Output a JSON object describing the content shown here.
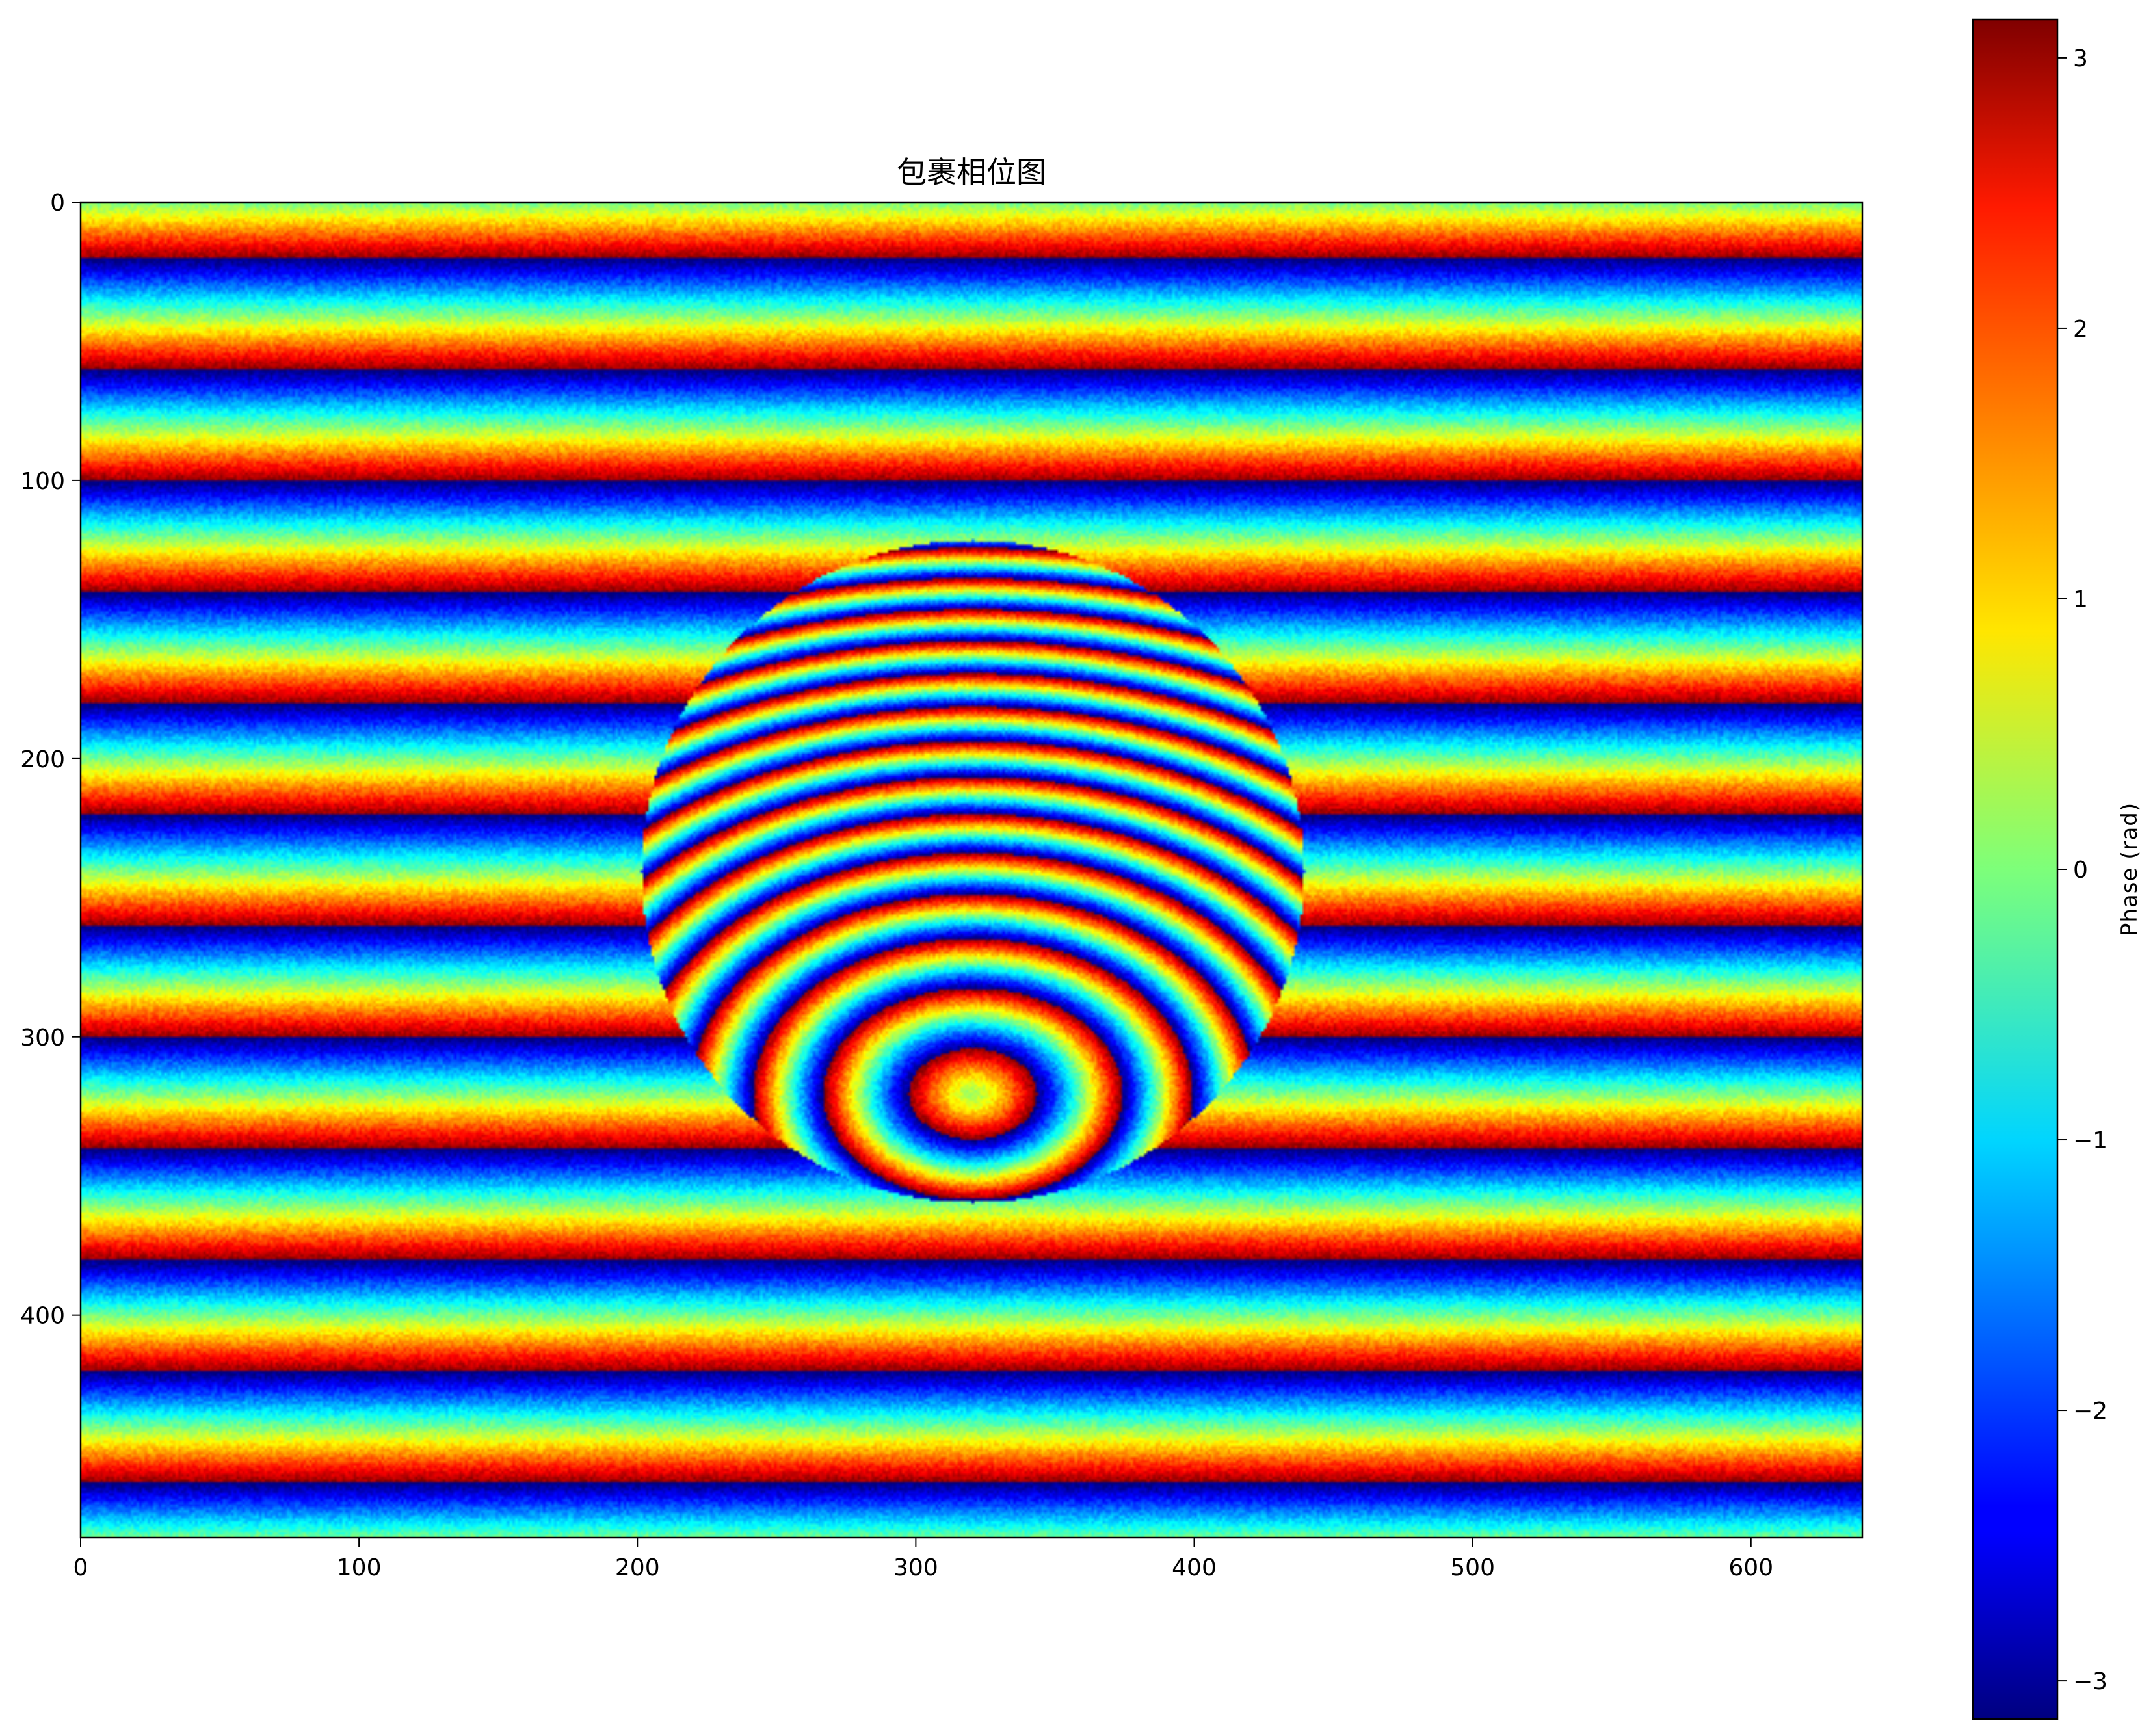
{
  "chart_data": {
    "type": "heatmap",
    "title": "包裹相位图",
    "xlim": [
      0,
      640
    ],
    "ylim": [
      480,
      0
    ],
    "x_ticks": [
      0,
      100,
      200,
      300,
      400,
      500,
      600
    ],
    "y_ticks": [
      0,
      100,
      200,
      300,
      400
    ],
    "x_tick_labels": [
      "0",
      "100",
      "200",
      "300",
      "400",
      "500",
      "600"
    ],
    "y_tick_labels": [
      "0",
      "100",
      "200",
      "300",
      "400"
    ],
    "colormap": "jet",
    "colorbar": {
      "label": "Phase (rad)",
      "range": [
        -3.14159,
        3.14159
      ],
      "ticks": [
        -3,
        -2,
        -1,
        0,
        1,
        2,
        3
      ],
      "tick_labels": [
        "−3",
        "−2",
        "−1",
        "0",
        "1",
        "2",
        "3"
      ],
      "placement": "right"
    },
    "background_fringes": {
      "orientation": "horizontal",
      "period_rows": 40,
      "phase_at_row_0": 0,
      "wrap_row": 20
    },
    "object": {
      "shape": "sphere",
      "center_x": 320,
      "center_y": 240,
      "radius": 119,
      "inner_center_x": 320,
      "inner_center_y": 320,
      "inner_radius_x": 130,
      "inner_radius_y": 92,
      "fringe_count": 8
    }
  }
}
